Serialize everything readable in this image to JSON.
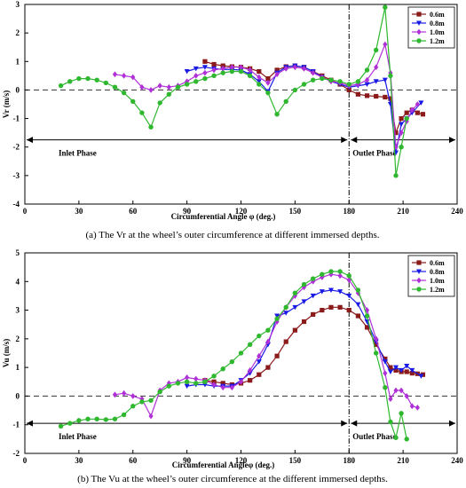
{
  "chart_data": [
    {
      "type": "line",
      "caption": "(a) The Vr at the wheel’s outer circumference at different immersed depths.",
      "xlabel": "Circumferential Angle φ (deg.)",
      "ylabel": "Vr (m/s)",
      "xlim": [
        0,
        240
      ],
      "ylim": [
        -4,
        3
      ],
      "xticks": [
        "0",
        "30",
        "60",
        "90",
        "120",
        "150",
        "180",
        "210",
        "240"
      ],
      "yticks": [
        "-4",
        "-3",
        "-2",
        "-1",
        "0",
        "1",
        "2",
        "3"
      ],
      "grid": false,
      "legend": "top-right",
      "divider_x": 180,
      "phases": [
        {
          "label": "Inlet Phase",
          "x_from": 0,
          "x_to": 180,
          "y": -1.75
        },
        {
          "label": "Outlet Phase",
          "x_from": 180,
          "x_to": 240,
          "y": -1.75
        }
      ],
      "series": [
        {
          "name": "0.6m",
          "color": "#8B1A1A",
          "marker": "square",
          "x": [
            100,
            105,
            110,
            115,
            120,
            125,
            130,
            135,
            140,
            145,
            150,
            155,
            160,
            165,
            170,
            175,
            180,
            185,
            190,
            195,
            200,
            203,
            206,
            209,
            212,
            215,
            218,
            221
          ],
          "y": [
            1.0,
            0.9,
            0.85,
            0.82,
            0.8,
            0.75,
            0.65,
            0.4,
            0.7,
            0.82,
            0.85,
            0.8,
            0.65,
            0.5,
            0.35,
            0.2,
            0.0,
            -0.15,
            -0.2,
            -0.22,
            -0.25,
            -0.3,
            -1.5,
            -1.0,
            -0.8,
            -0.7,
            -0.8,
            -0.85
          ]
        },
        {
          "name": "0.8m",
          "color": "#1A1AE6",
          "marker": "triangle-down",
          "x": [
            90,
            95,
            100,
            105,
            110,
            115,
            120,
            125,
            130,
            135,
            140,
            145,
            150,
            155,
            160,
            165,
            170,
            175,
            180,
            185,
            190,
            195,
            200,
            203,
            206,
            209,
            212,
            215,
            220
          ],
          "y": [
            0.65,
            0.75,
            0.8,
            0.75,
            0.72,
            0.72,
            0.7,
            0.55,
            0.3,
            -0.05,
            0.6,
            0.8,
            0.85,
            0.8,
            0.65,
            0.45,
            0.3,
            0.2,
            0.1,
            0.15,
            0.2,
            0.3,
            0.35,
            -0.5,
            -2.2,
            -1.2,
            -1.0,
            -0.8,
            -0.45
          ]
        },
        {
          "name": "1.0m",
          "color": "#B030D8",
          "marker": "diamond",
          "x": [
            50,
            55,
            60,
            65,
            70,
            75,
            80,
            85,
            90,
            95,
            100,
            105,
            110,
            115,
            120,
            125,
            130,
            135,
            140,
            145,
            150,
            155,
            160,
            165,
            170,
            175,
            180,
            185,
            190,
            195,
            200,
            203,
            206,
            209,
            212,
            215,
            218
          ],
          "y": [
            0.55,
            0.5,
            0.45,
            0.1,
            0.0,
            0.15,
            0.1,
            0.15,
            0.3,
            0.5,
            0.6,
            0.7,
            0.75,
            0.8,
            0.8,
            0.7,
            0.45,
            0.25,
            0.55,
            0.75,
            0.8,
            0.75,
            0.6,
            0.45,
            0.3,
            0.25,
            0.15,
            0.2,
            0.35,
            0.8,
            1.6,
            0.6,
            -2.0,
            -1.5,
            -1.1,
            -0.7,
            -0.5
          ]
        },
        {
          "name": "1.2m",
          "color": "#2FB82F",
          "marker": "circle",
          "x": [
            20,
            25,
            30,
            35,
            40,
            45,
            50,
            55,
            60,
            65,
            70,
            75,
            80,
            85,
            90,
            95,
            100,
            105,
            110,
            115,
            120,
            125,
            130,
            135,
            140,
            145,
            150,
            155,
            160,
            165,
            170,
            175,
            180,
            185,
            190,
            195,
            200,
            203,
            206,
            209,
            212
          ],
          "y": [
            0.15,
            0.3,
            0.4,
            0.4,
            0.35,
            0.25,
            0.1,
            -0.1,
            -0.4,
            -0.8,
            -1.3,
            -0.45,
            -0.15,
            0.1,
            0.2,
            0.3,
            0.4,
            0.5,
            0.6,
            0.65,
            0.65,
            0.5,
            0.2,
            -0.1,
            -0.85,
            -0.4,
            0.0,
            0.2,
            0.35,
            0.4,
            0.35,
            0.3,
            0.2,
            0.3,
            0.7,
            1.4,
            2.9,
            0.5,
            -3.0,
            -2.0,
            -1.0
          ]
        }
      ]
    },
    {
      "type": "line",
      "caption": "(b) The Vu at the wheel’s outer circumference at the different immersed depths.",
      "xlabel": "Circumferential Angleφ (deg.)",
      "ylabel": "Vu (m/s)",
      "xlim": [
        0,
        240
      ],
      "ylim": [
        -2,
        5
      ],
      "xticks": [
        "0",
        "30",
        "60",
        "90",
        "120",
        "150",
        "180",
        "210",
        "240"
      ],
      "yticks": [
        "-2",
        "-1",
        "0",
        "1",
        "2",
        "3",
        "4",
        "5"
      ],
      "grid": false,
      "legend": "top-right",
      "divider_x": 180,
      "phases": [
        {
          "label": "Inlet Phase",
          "x_from": 0,
          "x_to": 180,
          "y": -0.95
        },
        {
          "label": "Outlet Phase",
          "x_from": 180,
          "x_to": 240,
          "y": -0.95
        }
      ],
      "series": [
        {
          "name": "0.6m",
          "color": "#8B1A1A",
          "marker": "square",
          "x": [
            100,
            105,
            110,
            115,
            120,
            125,
            130,
            135,
            140,
            145,
            150,
            155,
            160,
            165,
            170,
            175,
            180,
            185,
            190,
            195,
            200,
            203,
            206,
            209,
            212,
            215,
            218,
            221
          ],
          "y": [
            0.55,
            0.5,
            0.45,
            0.4,
            0.45,
            0.55,
            0.75,
            1.0,
            1.4,
            1.9,
            2.3,
            2.6,
            2.85,
            3.0,
            3.1,
            3.1,
            3.0,
            2.8,
            2.4,
            1.8,
            1.3,
            1.0,
            0.9,
            0.85,
            0.85,
            0.8,
            0.78,
            0.75
          ]
        },
        {
          "name": "0.8m",
          "color": "#1A1AE6",
          "marker": "triangle-down",
          "x": [
            90,
            95,
            100,
            105,
            110,
            115,
            120,
            125,
            130,
            135,
            140,
            145,
            150,
            155,
            160,
            165,
            170,
            175,
            180,
            185,
            190,
            195,
            200,
            203,
            206,
            209,
            212,
            215,
            220
          ],
          "y": [
            0.35,
            0.4,
            0.4,
            0.35,
            0.35,
            0.35,
            0.55,
            0.8,
            1.2,
            1.8,
            2.8,
            2.9,
            3.1,
            3.3,
            3.5,
            3.65,
            3.7,
            3.65,
            3.5,
            3.2,
            2.6,
            1.9,
            1.2,
            0.85,
            1.0,
            0.9,
            1.05,
            0.9,
            0.7
          ]
        },
        {
          "name": "1.0m",
          "color": "#B030D8",
          "marker": "diamond",
          "x": [
            50,
            55,
            60,
            65,
            70,
            75,
            80,
            85,
            90,
            95,
            100,
            105,
            110,
            115,
            120,
            125,
            130,
            135,
            140,
            145,
            150,
            155,
            160,
            165,
            170,
            175,
            180,
            185,
            190,
            195,
            200,
            203,
            206,
            209,
            212,
            215,
            218
          ],
          "y": [
            0.05,
            0.1,
            0.0,
            -0.1,
            -0.7,
            0.2,
            0.45,
            0.5,
            0.65,
            0.6,
            0.55,
            0.4,
            0.3,
            0.3,
            0.5,
            0.9,
            1.4,
            1.9,
            2.6,
            3.1,
            3.5,
            3.8,
            4.0,
            4.15,
            4.25,
            4.2,
            4.05,
            3.6,
            3.0,
            2.0,
            0.8,
            -0.1,
            0.2,
            0.2,
            0.0,
            -0.35,
            -0.4
          ]
        },
        {
          "name": "1.2m",
          "color": "#2FB82F",
          "marker": "circle",
          "x": [
            20,
            25,
            30,
            35,
            40,
            45,
            50,
            55,
            60,
            65,
            70,
            75,
            80,
            85,
            90,
            95,
            100,
            105,
            110,
            115,
            120,
            125,
            130,
            135,
            140,
            145,
            150,
            155,
            160,
            165,
            170,
            175,
            180,
            185,
            190,
            195,
            200,
            203,
            206,
            209,
            212
          ],
          "y": [
            -1.05,
            -0.95,
            -0.85,
            -0.8,
            -0.8,
            -0.82,
            -0.8,
            -0.65,
            -0.35,
            -0.2,
            -0.15,
            0.15,
            0.35,
            0.45,
            0.5,
            0.45,
            0.5,
            0.7,
            0.95,
            1.2,
            1.5,
            1.8,
            2.1,
            2.3,
            2.7,
            3.1,
            3.6,
            3.9,
            4.1,
            4.25,
            4.35,
            4.35,
            4.2,
            3.7,
            2.8,
            1.5,
            0.3,
            -0.9,
            -1.45,
            -0.6,
            -1.5
          ]
        }
      ]
    }
  ]
}
